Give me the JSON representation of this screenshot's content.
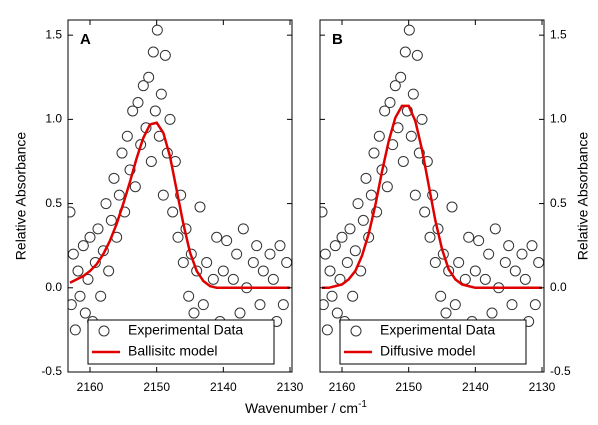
{
  "chart_data": [
    {
      "type": "scatter",
      "panel_label": "A",
      "y_label": "Relative Absorbance",
      "y_label_side": "left",
      "x_label": "Wavenumber / cm",
      "x_label_sup": "-1",
      "xlim": [
        2163.3,
        2129.7
      ],
      "ylim": [
        -0.5,
        1.59
      ],
      "xticks": [
        2160,
        2150,
        2140,
        2130
      ],
      "yticks": [
        -0.5,
        {
          "value": 0,
          "label": "0.0"
        },
        0.5,
        {
          "value": 1,
          "label": "1.0"
        },
        1.5
      ],
      "series": [
        {
          "name": "Experimental Data",
          "marker": "circle",
          "color": "#333333",
          "x": [
            2163.0,
            2162.8,
            2162.5,
            2162.2,
            2161.8,
            2161.5,
            2161.0,
            2160.7,
            2160.3,
            2160.0,
            2159.6,
            2159.2,
            2158.8,
            2158.4,
            2158.0,
            2157.6,
            2157.2,
            2156.8,
            2156.4,
            2156.0,
            2155.6,
            2155.2,
            2154.8,
            2154.4,
            2154.0,
            2153.6,
            2153.2,
            2152.8,
            2152.4,
            2152.0,
            2151.6,
            2151.2,
            2150.8,
            2150.5,
            2150.2,
            2149.9,
            2149.6,
            2149.3,
            2149.0,
            2148.7,
            2148.4,
            2148.0,
            2147.6,
            2147.2,
            2146.8,
            2146.4,
            2146.0,
            2145.6,
            2145.2,
            2144.8,
            2144.4,
            2144.0,
            2143.5,
            2143.0,
            2142.5,
            2142.0,
            2141.5,
            2141.0,
            2140.5,
            2140.0,
            2139.5,
            2139.0,
            2138.5,
            2138.0,
            2137.5,
            2137.0,
            2136.5,
            2136.0,
            2135.5,
            2135.0,
            2134.5,
            2134.0,
            2133.5,
            2133.0,
            2132.5,
            2132.0,
            2131.5,
            2131.0,
            2130.5
          ],
          "values": [
            0.45,
            -0.1,
            0.2,
            -0.25,
            0.1,
            -0.05,
            0.25,
            -0.15,
            0.05,
            0.3,
            -0.2,
            0.15,
            0.35,
            -0.05,
            0.22,
            0.5,
            0.1,
            0.4,
            0.65,
            0.3,
            0.55,
            0.8,
            0.45,
            0.9,
            0.7,
            1.05,
            0.6,
            1.1,
            0.85,
            1.2,
            0.95,
            1.25,
            0.75,
            1.4,
            1.05,
            1.53,
            0.9,
            1.15,
            0.55,
            1.38,
            0.8,
            1.0,
            0.45,
            0.75,
            0.3,
            0.55,
            0.15,
            0.35,
            -0.05,
            0.2,
            -0.15,
            0.1,
            0.48,
            -0.1,
            0.15,
            -0.25,
            0.05,
            0.3,
            -0.2,
            0.1,
            0.28,
            -0.3,
            0.05,
            0.2,
            -0.15,
            0.35,
            0.0,
            -0.3,
            0.15,
            0.25,
            -0.1,
            0.1,
            -0.35,
            0.2,
            0.05,
            -0.2,
            0.25,
            -0.1,
            0.15
          ]
        },
        {
          "name": "Ballisitc model",
          "marker": "line",
          "color": "#e00000",
          "x": [
            2163,
            2162,
            2161,
            2160,
            2159,
            2158,
            2157,
            2156,
            2155,
            2154,
            2153,
            2152,
            2151,
            2150,
            2149,
            2148,
            2147,
            2146,
            2145,
            2144,
            2143,
            2142,
            2141,
            2130
          ],
          "values": [
            0.03,
            0.05,
            0.07,
            0.1,
            0.14,
            0.2,
            0.28,
            0.38,
            0.5,
            0.63,
            0.77,
            0.89,
            0.97,
            0.98,
            0.92,
            0.78,
            0.58,
            0.38,
            0.21,
            0.1,
            0.04,
            0.01,
            0,
            0
          ]
        }
      ]
    },
    {
      "type": "scatter",
      "panel_label": "B",
      "y_label": "Relative Absorbance",
      "y_label_side": "right",
      "xlim": [
        2163.3,
        2129.7
      ],
      "ylim": [
        -0.5,
        1.59
      ],
      "xticks": [
        2160,
        2150,
        2140,
        2130
      ],
      "yticks": [
        -0.5,
        {
          "value": 0,
          "label": "0.0"
        },
        0.5,
        {
          "value": 1,
          "label": "1.0"
        },
        1.5
      ],
      "series": [
        {
          "name": "Experimental Data",
          "marker": "circle",
          "color": "#333333",
          "x": [
            2163.0,
            2162.8,
            2162.5,
            2162.2,
            2161.8,
            2161.5,
            2161.0,
            2160.7,
            2160.3,
            2160.0,
            2159.6,
            2159.2,
            2158.8,
            2158.4,
            2158.0,
            2157.6,
            2157.2,
            2156.8,
            2156.4,
            2156.0,
            2155.6,
            2155.2,
            2154.8,
            2154.4,
            2154.0,
            2153.6,
            2153.2,
            2152.8,
            2152.4,
            2152.0,
            2151.6,
            2151.2,
            2150.8,
            2150.5,
            2150.2,
            2149.9,
            2149.6,
            2149.3,
            2149.0,
            2148.7,
            2148.4,
            2148.0,
            2147.6,
            2147.2,
            2146.8,
            2146.4,
            2146.0,
            2145.6,
            2145.2,
            2144.8,
            2144.4,
            2144.0,
            2143.5,
            2143.0,
            2142.5,
            2142.0,
            2141.5,
            2141.0,
            2140.5,
            2140.0,
            2139.5,
            2139.0,
            2138.5,
            2138.0,
            2137.5,
            2137.0,
            2136.5,
            2136.0,
            2135.5,
            2135.0,
            2134.5,
            2134.0,
            2133.5,
            2133.0,
            2132.5,
            2132.0,
            2131.5,
            2131.0,
            2130.5
          ],
          "values": [
            0.45,
            -0.1,
            0.2,
            -0.25,
            0.1,
            -0.05,
            0.25,
            -0.15,
            0.05,
            0.3,
            -0.2,
            0.15,
            0.35,
            -0.05,
            0.22,
            0.5,
            0.1,
            0.4,
            0.65,
            0.3,
            0.55,
            0.8,
            0.45,
            0.9,
            0.7,
            1.05,
            0.6,
            1.1,
            0.85,
            1.2,
            0.95,
            1.25,
            0.75,
            1.4,
            1.05,
            1.53,
            0.9,
            1.15,
            0.55,
            1.38,
            0.8,
            1.0,
            0.45,
            0.75,
            0.3,
            0.55,
            0.15,
            0.35,
            -0.05,
            0.2,
            -0.15,
            0.1,
            0.48,
            -0.1,
            0.15,
            -0.25,
            0.05,
            0.3,
            -0.2,
            0.1,
            0.28,
            -0.3,
            0.05,
            0.2,
            -0.15,
            0.35,
            0.0,
            -0.3,
            0.15,
            0.25,
            -0.1,
            0.1,
            -0.35,
            0.2,
            0.05,
            -0.2,
            0.25,
            -0.1,
            0.15
          ]
        },
        {
          "name": "Diffusive model",
          "marker": "line",
          "color": "#e00000",
          "x": [
            2163,
            2162,
            2161,
            2160,
            2159,
            2158,
            2157,
            2156,
            2155,
            2154,
            2153,
            2152,
            2151,
            2150,
            2149,
            2148,
            2147,
            2146,
            2145,
            2144,
            2143,
            2142,
            2141,
            2140,
            2130
          ],
          "values": [
            0,
            0,
            0.01,
            0.02,
            0.05,
            0.1,
            0.19,
            0.32,
            0.49,
            0.69,
            0.87,
            1.01,
            1.08,
            1.08,
            0.99,
            0.82,
            0.61,
            0.4,
            0.23,
            0.11,
            0.05,
            0.02,
            0.01,
            0,
            0
          ]
        }
      ]
    }
  ]
}
